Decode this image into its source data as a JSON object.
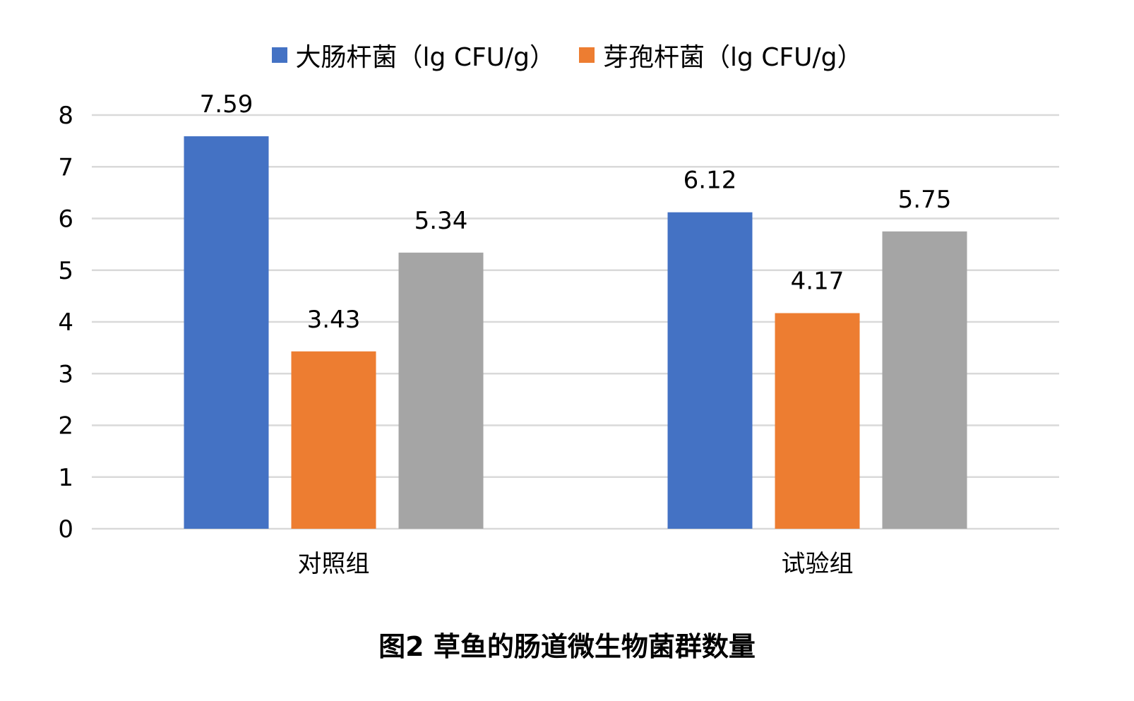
{
  "caption": "图2 草鱼的肠道微生物菌群数量",
  "chart_data": {
    "type": "bar",
    "categories": [
      "对照组",
      "试验组"
    ],
    "series": [
      {
        "name": "大肠杆菌（lg CFU/g）",
        "values": [
          7.59,
          6.12
        ],
        "color": "#4472C4"
      },
      {
        "name": "芽孢杆菌（lg CFU/g）",
        "values": [
          3.43,
          4.17
        ],
        "color": "#ED7D31"
      },
      {
        "name": "",
        "values": [
          5.34,
          5.75
        ],
        "color": "#A5A5A5"
      }
    ],
    "ylim": [
      0,
      8
    ],
    "yticks": [
      "0",
      "1",
      "2",
      "3",
      "4",
      "5",
      "6",
      "7",
      "8"
    ],
    "grid": true,
    "legend_position": "top",
    "data_labels": [
      [
        "7.59",
        "3.43",
        "5.34"
      ],
      [
        "6.12",
        "4.17",
        "5.75"
      ]
    ]
  }
}
